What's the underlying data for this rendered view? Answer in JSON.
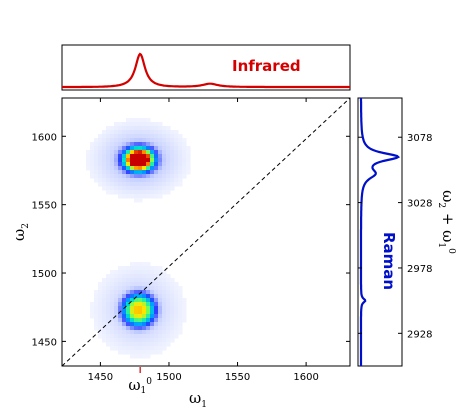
{
  "chart_data": {
    "type": "heatmap",
    "main": {
      "xlabel": "ω1",
      "ylabel": "ω2",
      "xlim": [
        1422,
        1632
      ],
      "ylim": [
        1432,
        1628
      ],
      "xticks": [
        1450,
        1500,
        1550,
        1600
      ],
      "yticks": [
        1450,
        1500,
        1550,
        1600
      ],
      "diagonal": {
        "style": "dashed",
        "from": [
          1422,
          1432
        ],
        "to": [
          1632,
          1628
        ]
      },
      "peaks": [
        {
          "x": 1478,
          "y": 1583,
          "intensity": 1.0,
          "sx": 9,
          "sy": 7
        },
        {
          "x": 1478,
          "y": 1473,
          "intensity": 0.72,
          "sx": 9,
          "sy": 9
        }
      ],
      "x_marker": {
        "x": 1479,
        "label": "ω1⁰",
        "color": "#d00000"
      }
    },
    "infrared": {
      "title": "Infrared",
      "color": "#d40000",
      "peaks": [
        {
          "x": 1479,
          "height": 1.0,
          "width": 5
        },
        {
          "x": 1530,
          "height": 0.1,
          "width": 8
        }
      ]
    },
    "raman": {
      "title": "Raman",
      "color": "#0010c8",
      "ylabel": "ω2 + ω1⁰",
      "ylim": [
        2903,
        3108
      ],
      "yticks": [
        2928,
        2978,
        3028,
        3078
      ],
      "peaks": [
        {
          "y": 3063,
          "height": 1.0,
          "width": 4
        },
        {
          "y": 3050,
          "height": 0.35,
          "width": 5
        },
        {
          "y": 2953,
          "height": 0.12,
          "width": 2
        }
      ]
    }
  }
}
